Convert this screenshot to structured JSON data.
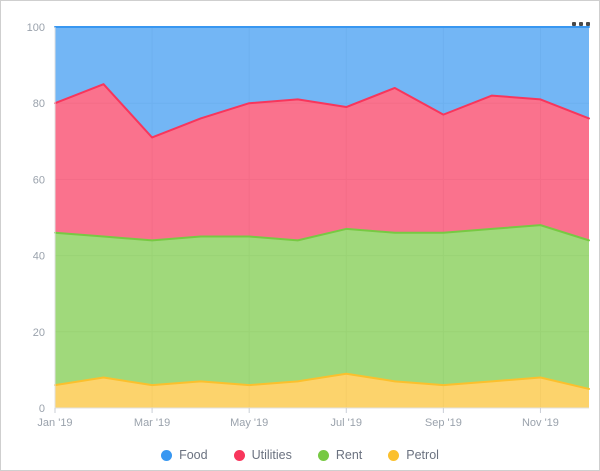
{
  "window": {
    "background": "#ffffff",
    "border_color": "#cfcfcf"
  },
  "toolbar": {
    "menu_icon": "ellipsis-menu",
    "menu_dots_color": "#4a4a4a"
  },
  "chart_data": {
    "type": "area",
    "stacked": true,
    "stack_total": 100,
    "stack_order": "last_series_at_bottom",
    "title": "",
    "xlabel": "",
    "ylabel": "",
    "x": [
      "Jan '19",
      "Feb '19",
      "Mar '19",
      "Apr '19",
      "May '19",
      "Jun '19",
      "Jul '19",
      "Aug '19",
      "Sep '19",
      "Oct '19",
      "Nov '19",
      "Dec '19"
    ],
    "x_axis_tick_labels": [
      "Jan '19",
      "Mar '19",
      "May '19",
      "Jul '19",
      "Sep '19",
      "Nov '19"
    ],
    "x_axis_tick_indices": [
      0,
      2,
      4,
      6,
      8,
      10
    ],
    "y_axis_ticks": [
      0,
      20,
      40,
      60,
      80,
      100
    ],
    "y_axis_tick_labels": [
      "0",
      "20",
      "40",
      "60",
      "80",
      "100"
    ],
    "ylim": [
      0,
      100
    ],
    "grid": true,
    "legend_position": "bottom",
    "fill_opacity": 0.7,
    "stroke_width": 2,
    "series": [
      {
        "name": "Food",
        "color": "#3897F1",
        "values": [
          20,
          15,
          29,
          24,
          20,
          19,
          21,
          16,
          23,
          18,
          19,
          24
        ]
      },
      {
        "name": "Utilities",
        "color": "#F8365C",
        "values": [
          34,
          40,
          27,
          31,
          35,
          37,
          32,
          38,
          31,
          35,
          33,
          32
        ]
      },
      {
        "name": "Rent",
        "color": "#77C943",
        "values": [
          40,
          37,
          38,
          38,
          39,
          37,
          38,
          39,
          40,
          40,
          40,
          39
        ]
      },
      {
        "name": "Petrol",
        "color": "#FBC02D",
        "values": [
          6,
          8,
          6,
          7,
          6,
          7,
          9,
          7,
          6,
          7,
          8,
          5
        ]
      }
    ]
  },
  "style": {
    "grid_color": "#e9e9e9",
    "axis_line_color": "#e0e0e0",
    "tick_color": "#c9ced6",
    "axis_label_color": "#9aa2ac",
    "legend_text_color": "#6b7280"
  }
}
